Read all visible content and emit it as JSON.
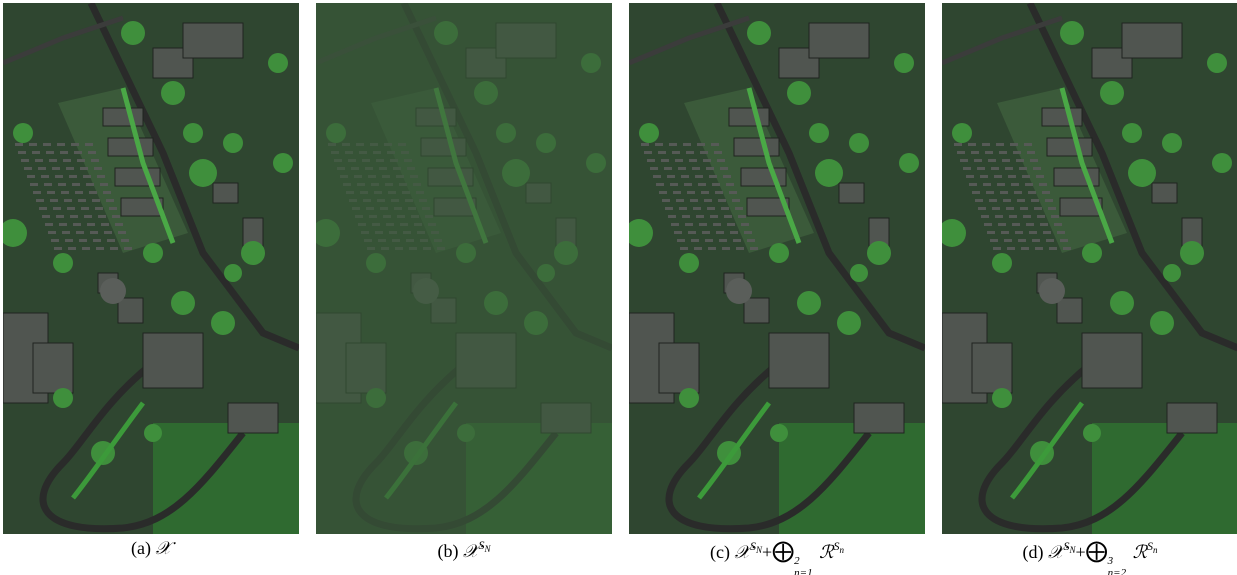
{
  "panels": [
    {
      "caption": {
        "parts": [
          "(a)",
          "𝒳"
        ]
      }
    },
    {
      "caption": {
        "parts": [
          "(b)",
          "𝒳",
          "S",
          "N"
        ]
      }
    },
    {
      "caption": {
        "parts": [
          "(c)",
          "𝒳",
          "S",
          "N",
          "+",
          "⨁",
          "n=1",
          "2",
          "ℛ",
          "S",
          "n"
        ]
      }
    },
    {
      "caption": {
        "parts": [
          "(d)",
          "𝒳",
          "S",
          "N",
          "+",
          "⨁",
          "n=2",
          "3",
          "ℛ",
          "S",
          "n"
        ]
      }
    }
  ]
}
